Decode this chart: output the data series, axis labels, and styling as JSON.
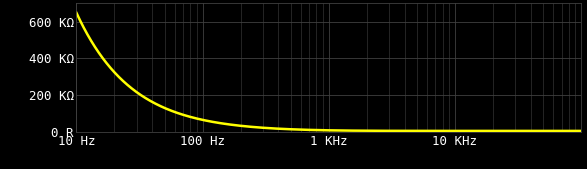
{
  "background_color": "#000000",
  "plot_bg_color": "#000000",
  "line_color": "#ffff00",
  "line_width": 1.8,
  "grid_color": "#404040",
  "tick_color": "#ffffff",
  "label_color": "#ffffff",
  "xmin": 10,
  "xmax": 100000,
  "ymin": 0,
  "ymax": 700000,
  "yticks": [
    0,
    200000,
    400000,
    600000
  ],
  "ytick_labels": [
    "0 R",
    "200 KΩ",
    "400 KΩ",
    "600 KΩ"
  ],
  "xtick_labels": [
    "10 Hz",
    "100 Hz",
    "1 KHz",
    "10 KHz"
  ],
  "xtick_positions": [
    10,
    100,
    1000,
    10000
  ],
  "font_size": 9,
  "C_eff": 2.274e-09,
  "R_floor": 5000,
  "figwidth": 5.87,
  "figheight": 1.69,
  "dpi": 100
}
